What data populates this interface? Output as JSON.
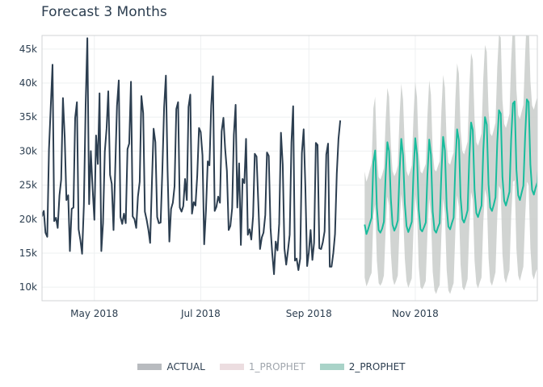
{
  "chart_data": {
    "type": "line",
    "title": "Forecast 3 Months",
    "xlabel": "",
    "ylabel": "",
    "x_range": [
      "2018-04-01",
      "2019-01-10"
    ],
    "ylim": [
      8000,
      47000
    ],
    "y_ticks": [
      10000,
      15000,
      20000,
      25000,
      30000,
      35000,
      40000,
      45000
    ],
    "y_tick_labels": [
      "10k",
      "15k",
      "20k",
      "25k",
      "30k",
      "35k",
      "40k",
      "45k"
    ],
    "x_ticks": [
      "2018-05-01",
      "2018-07-01",
      "2018-09-01",
      "2018-11-01"
    ],
    "x_tick_labels": [
      "May 2018",
      "Jul 2018",
      "Sep 2018",
      "Nov 2018"
    ],
    "grid": true,
    "legend_position": "bottom",
    "colors": {
      "actual": "#2c3e50",
      "prophet_1_band": "#e8d4d8",
      "prophet_2_line": "#18bc9c",
      "prophet_2_band": "#a7c7bf",
      "forecast_band_fill": "#c9ccca"
    },
    "legend": [
      {
        "label": "ACTUAL",
        "color": "#b8bbbf",
        "dim": false
      },
      {
        "label": "1_PROPHET",
        "color": "#ecdde0",
        "dim": true
      },
      {
        "label": "2_PROPHET",
        "color": "#a9d3c8",
        "dim": false
      }
    ],
    "series": [
      {
        "name": "ACTUAL",
        "x_start": "2018-04-01",
        "step_days": 1,
        "values": [
          20400,
          21200,
          18000,
          17400,
          30200,
          36500,
          42700,
          19700,
          20200,
          18700,
          23500,
          25800,
          37800,
          32000,
          22800,
          23500,
          15300,
          21500,
          21700,
          34900,
          37200,
          18500,
          16900,
          14900,
          22000,
          36800,
          46600,
          22200,
          30000,
          24500,
          19900,
          32300,
          28100,
          38500,
          15300,
          19400,
          29900,
          33300,
          38800,
          26500,
          25200,
          18400,
          27800,
          36700,
          40400,
          20300,
          19300,
          20800,
          19400,
          30300,
          31100,
          40200,
          20400,
          20000,
          18700,
          23300,
          25500,
          38100,
          35600,
          21100,
          19900,
          18400,
          16500,
          25300,
          33300,
          31300,
          20300,
          19400,
          19500,
          27100,
          36400,
          41100,
          27100,
          16700,
          21500,
          22400,
          24800,
          36200,
          37200,
          21700,
          21100,
          21900,
          25900,
          22800,
          36500,
          38300,
          20800,
          22500,
          22000,
          26400,
          33400,
          32800,
          29400,
          16300,
          21300,
          28500,
          27900,
          36700,
          41000,
          21200,
          21800,
          23300,
          22400,
          32900,
          34900,
          30400,
          27100,
          18400,
          19000,
          21600,
          32400,
          36800,
          21700,
          28200,
          16200,
          25900,
          25300,
          31800,
          17700,
          18500,
          17000,
          20400,
          29600,
          29200,
          22600,
          15600,
          17300,
          18000,
          20600,
          29800,
          29300,
          18700,
          15000,
          11900,
          16700,
          15400,
          19300,
          32700,
          28000,
          15700,
          13300,
          15300,
          17700,
          31300,
          36600,
          13900,
          14200,
          12500,
          14200,
          29700,
          33200,
          24800,
          13100,
          15100,
          18400,
          14000,
          16500,
          31200,
          30900,
          15700,
          15600,
          16600,
          18200,
          29500,
          31100,
          13000,
          13000,
          15000,
          17800,
          26700,
          31800,
          34500
        ]
      },
      {
        "name": "2_PROPHET",
        "x_start": "2018-10-03",
        "step_days": 1,
        "values": [
          19200,
          17800,
          18500,
          19400,
          20200,
          28400,
          30100,
          21700,
          18400,
          18000,
          18600,
          19600,
          26300,
          31300,
          30000,
          23000,
          19200,
          18300,
          18900,
          19800,
          27000,
          31800,
          29400,
          22300,
          19000,
          18100,
          18800,
          19600,
          27000,
          31900,
          29500,
          21400,
          18500,
          18200,
          18800,
          19500,
          26600,
          31700,
          29500,
          21100,
          18400,
          18000,
          18800,
          19400,
          26900,
          32100,
          30100,
          21800,
          18900,
          18500,
          19400,
          20200,
          28100,
          33200,
          31600,
          23200,
          20000,
          19500,
          20300,
          21300,
          29100,
          34200,
          33100,
          24300,
          20900,
          20300,
          21200,
          22000,
          30100,
          35000,
          33900,
          25100,
          21700,
          21200,
          22100,
          23200,
          31300,
          36000,
          35500,
          26200,
          22700,
          22000,
          23000,
          24000,
          31800,
          37000,
          37300,
          27300,
          23500,
          22800,
          23900,
          24900,
          32200,
          37600,
          37200,
          28000,
          24300,
          23600,
          24600,
          25400,
          33400,
          36300,
          36600
        ]
      },
      {
        "name": "2_PROPHET_upper",
        "x_start": "2018-10-03",
        "step_days": 1,
        "values": [
          27000,
          25500,
          26300,
          27300,
          28300,
          36300,
          38000,
          29500,
          26200,
          25800,
          26500,
          27500,
          34300,
          39300,
          38000,
          31000,
          27100,
          26300,
          26900,
          27900,
          35100,
          39900,
          37600,
          30400,
          27100,
          26300,
          27000,
          27900,
          35300,
          40200,
          37900,
          29800,
          27000,
          26700,
          27400,
          28100,
          35300,
          40400,
          38300,
          29900,
          27300,
          27000,
          27800,
          28500,
          36000,
          41200,
          39300,
          31100,
          28300,
          28000,
          29000,
          29800,
          37800,
          42900,
          41400,
          33100,
          30000,
          29500,
          30400,
          31400,
          39300,
          44400,
          43400,
          34700,
          31300,
          30800,
          31700,
          32600,
          40700,
          45600,
          44600,
          35900,
          32600,
          32200,
          33100,
          34200,
          42300,
          47100,
          46700,
          37500,
          34000,
          33400,
          34400,
          35500,
          43300,
          48500,
          48900,
          39000,
          35300,
          34700,
          35800,
          36800,
          44200,
          49700,
          49400,
          40300,
          36700,
          36100,
          37100,
          38000,
          46000,
          49000,
          49300
        ]
      },
      {
        "name": "2_PROPHET_lower",
        "x_start": "2018-10-03",
        "step_days": 1,
        "values": [
          11400,
          10100,
          10700,
          11500,
          12100,
          20500,
          22200,
          13900,
          10600,
          10200,
          10700,
          11700,
          18300,
          23300,
          22000,
          15000,
          11300,
          10300,
          10900,
          11700,
          18900,
          23700,
          21200,
          14200,
          10900,
          9900,
          10600,
          11300,
          18700,
          23600,
          21100,
          13000,
          10000,
          9700,
          10200,
          10900,
          17900,
          23000,
          20700,
          12300,
          9500,
          9000,
          9800,
          10300,
          17800,
          23000,
          20900,
          12500,
          9500,
          9000,
          9800,
          10600,
          18400,
          23500,
          21800,
          13300,
          10000,
          9500,
          10200,
          11200,
          18900,
          24000,
          22800,
          13900,
          10500,
          9800,
          10700,
          11400,
          19500,
          24400,
          23200,
          14300,
          10800,
          10200,
          11100,
          12200,
          20300,
          24900,
          24300,
          14900,
          11400,
          10600,
          11600,
          12500,
          20300,
          25500,
          25700,
          15600,
          11700,
          10900,
          12000,
          13000,
          20200,
          25500,
          25000,
          15700,
          11900,
          11100,
          12100,
          12800,
          20800,
          23600,
          23900
        ]
      }
    ]
  }
}
